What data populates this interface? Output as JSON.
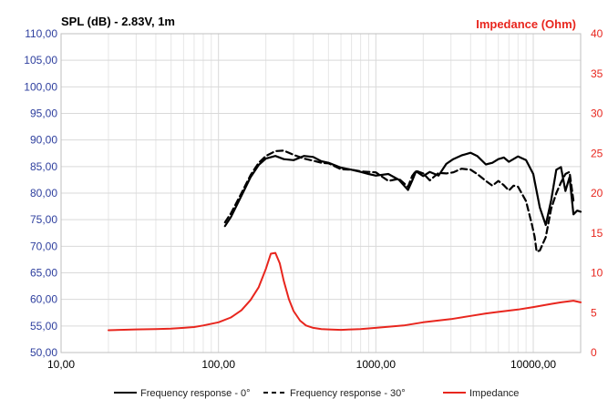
{
  "chart_data": {
    "type": "line",
    "title_left": "SPL (dB) - 2.83V, 1m",
    "title_right": "Impedance (Ohm)",
    "x_scale": "log",
    "xlim": [
      10,
      20000
    ],
    "x_ticks": [
      10,
      100,
      1000,
      10000
    ],
    "x_tick_labels": [
      "10,00",
      "100,00",
      "1000,00",
      "10000,00"
    ],
    "ylim": [
      50,
      110
    ],
    "y_ticks": [
      50,
      55,
      60,
      65,
      70,
      75,
      80,
      85,
      90,
      95,
      100,
      105,
      110
    ],
    "y_tick_labels": [
      "50,00",
      "55,00",
      "60,00",
      "65,00",
      "70,00",
      "75,00",
      "80,00",
      "85,00",
      "90,00",
      "95,00",
      "100,00",
      "105,00",
      "110,00"
    ],
    "y2lim": [
      0,
      40
    ],
    "y2_ticks": [
      0,
      5,
      10,
      15,
      20,
      25,
      30,
      35,
      40
    ],
    "y2_tick_labels": [
      "0",
      "5",
      "10",
      "15",
      "20",
      "25",
      "30",
      "35",
      "40"
    ],
    "grid": true,
    "legend_position": "bottom",
    "colors": {
      "spl_axis": "#2e3f9e",
      "impedance": "#e8261e",
      "curve": "#000000",
      "grid": "#d9d9d9"
    },
    "series": [
      {
        "name": "Frequency response - 0°",
        "axis": "left",
        "style": "solid",
        "x": [
          110,
          120,
          140,
          160,
          180,
          200,
          230,
          260,
          300,
          350,
          400,
          450,
          500,
          600,
          700,
          800,
          900,
          1000,
          1200,
          1400,
          1600,
          1700,
          1800,
          2000,
          2200,
          2500,
          2800,
          3100,
          3500,
          4000,
          4400,
          5000,
          5500,
          6000,
          6500,
          7000,
          8000,
          9000,
          10000,
          11000,
          12000,
          13000,
          14000,
          15000,
          16000,
          17000,
          18000,
          19000,
          20000
        ],
        "y": [
          73.8,
          75.5,
          79.5,
          83.0,
          85.3,
          86.5,
          87.0,
          86.4,
          86.2,
          87.0,
          86.8,
          86.0,
          85.7,
          84.8,
          84.4,
          84.0,
          83.6,
          83.3,
          83.6,
          82.5,
          80.6,
          82.3,
          84.1,
          83.2,
          84.0,
          83.3,
          85.5,
          86.4,
          87.1,
          87.6,
          87.0,
          85.4,
          85.7,
          86.4,
          86.7,
          85.9,
          86.9,
          86.2,
          83.6,
          77.3,
          74.0,
          78.7,
          84.4,
          84.9,
          80.4,
          83.0,
          76.0,
          76.7,
          76.5
        ]
      },
      {
        "name": "Frequency response - 30°",
        "axis": "left",
        "style": "dashed",
        "x": [
          110,
          120,
          140,
          160,
          180,
          200,
          230,
          260,
          300,
          350,
          400,
          450,
          500,
          600,
          700,
          800,
          900,
          1000,
          1200,
          1400,
          1600,
          1700,
          1800,
          2000,
          2200,
          2500,
          2800,
          3100,
          3500,
          4000,
          4400,
          5000,
          5500,
          6000,
          6500,
          7000,
          7500,
          8000,
          9000,
          9800,
          10200,
          10500,
          11000,
          12000,
          13000,
          14000,
          15000,
          16000,
          17000,
          18000
        ],
        "y": [
          74.5,
          76.2,
          80.0,
          83.4,
          85.7,
          87.0,
          87.9,
          88.0,
          87.2,
          86.5,
          86.1,
          85.7,
          85.6,
          84.5,
          84.4,
          84.1,
          84.0,
          83.9,
          82.3,
          82.7,
          81.2,
          83.2,
          84.2,
          83.7,
          82.4,
          83.8,
          83.7,
          83.9,
          84.6,
          84.4,
          83.6,
          82.3,
          81.4,
          82.3,
          81.5,
          80.5,
          81.4,
          81.2,
          78.5,
          74.1,
          71.8,
          69.0,
          69.2,
          71.7,
          77.1,
          80.0,
          82.0,
          83.6,
          84.0,
          78.6
        ]
      },
      {
        "name": "Impedance",
        "axis": "right",
        "style": "solid",
        "x": [
          20,
          30,
          40,
          50,
          60,
          70,
          80,
          100,
          120,
          140,
          160,
          180,
          200,
          215,
          230,
          245,
          260,
          280,
          300,
          330,
          360,
          400,
          450,
          500,
          600,
          700,
          800,
          1000,
          1500,
          2000,
          3000,
          4000,
          5000,
          6000,
          8000,
          10000,
          13000,
          15000,
          18000,
          20000
        ],
        "y": [
          2.8,
          2.9,
          2.95,
          3.0,
          3.1,
          3.2,
          3.4,
          3.8,
          4.4,
          5.3,
          6.6,
          8.2,
          10.5,
          12.4,
          12.5,
          11.2,
          9.0,
          6.7,
          5.2,
          4.0,
          3.4,
          3.1,
          2.95,
          2.9,
          2.85,
          2.9,
          2.95,
          3.1,
          3.4,
          3.8,
          4.2,
          4.6,
          4.9,
          5.1,
          5.4,
          5.7,
          6.1,
          6.3,
          6.5,
          6.3
        ]
      }
    ]
  }
}
